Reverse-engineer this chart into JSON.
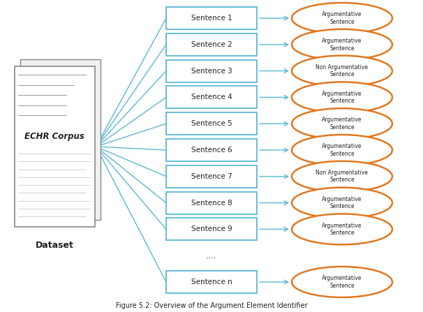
{
  "title": "Figure 5.2: Overview of the Argument Element Identifier",
  "background_color": "#ffffff",
  "sentences": [
    {
      "label": "Sentence 1",
      "label_type": "Argumentative\nSentence"
    },
    {
      "label": "Sentence 2",
      "label_type": "Argumentative\nSentence"
    },
    {
      "label": "Sentence 3",
      "label_type": "Non Argumentative\nSentence"
    },
    {
      "label": "Sentence 4",
      "label_type": "Argumentative\nSentence"
    },
    {
      "label": "Sentence 5",
      "label_type": "Argumentative\nSentence"
    },
    {
      "label": "Sentence 6",
      "label_type": "Argumentative\nSentence"
    },
    {
      "label": "Sentence 7",
      "label_type": "Non Argumentative\nSentence"
    },
    {
      "label": "Sentence 8",
      "label_type": "Argumentative\nSentence"
    },
    {
      "label": "Sentence 9",
      "label_type": "Argumentative\nSentence"
    },
    {
      "label": "....",
      "label_type": null
    },
    {
      "label": "Sentence n",
      "label_type": "Argumentative\nSentence"
    }
  ],
  "corpus_label": "ECHR Corpus",
  "dataset_label": "Dataset",
  "box_color": "#5bb8d4",
  "box_face_color": "#ffffff",
  "ellipse_edge_color": "#e07820",
  "ellipse_face_color": "#ffffff",
  "arrow_color": "#5bb8d4",
  "line_color": "#5bb8d4",
  "doc_border_color": "#888888",
  "doc_fill_color": "#ffffff",
  "doc_line_color": "#cccccc",
  "text_color": "#222222"
}
